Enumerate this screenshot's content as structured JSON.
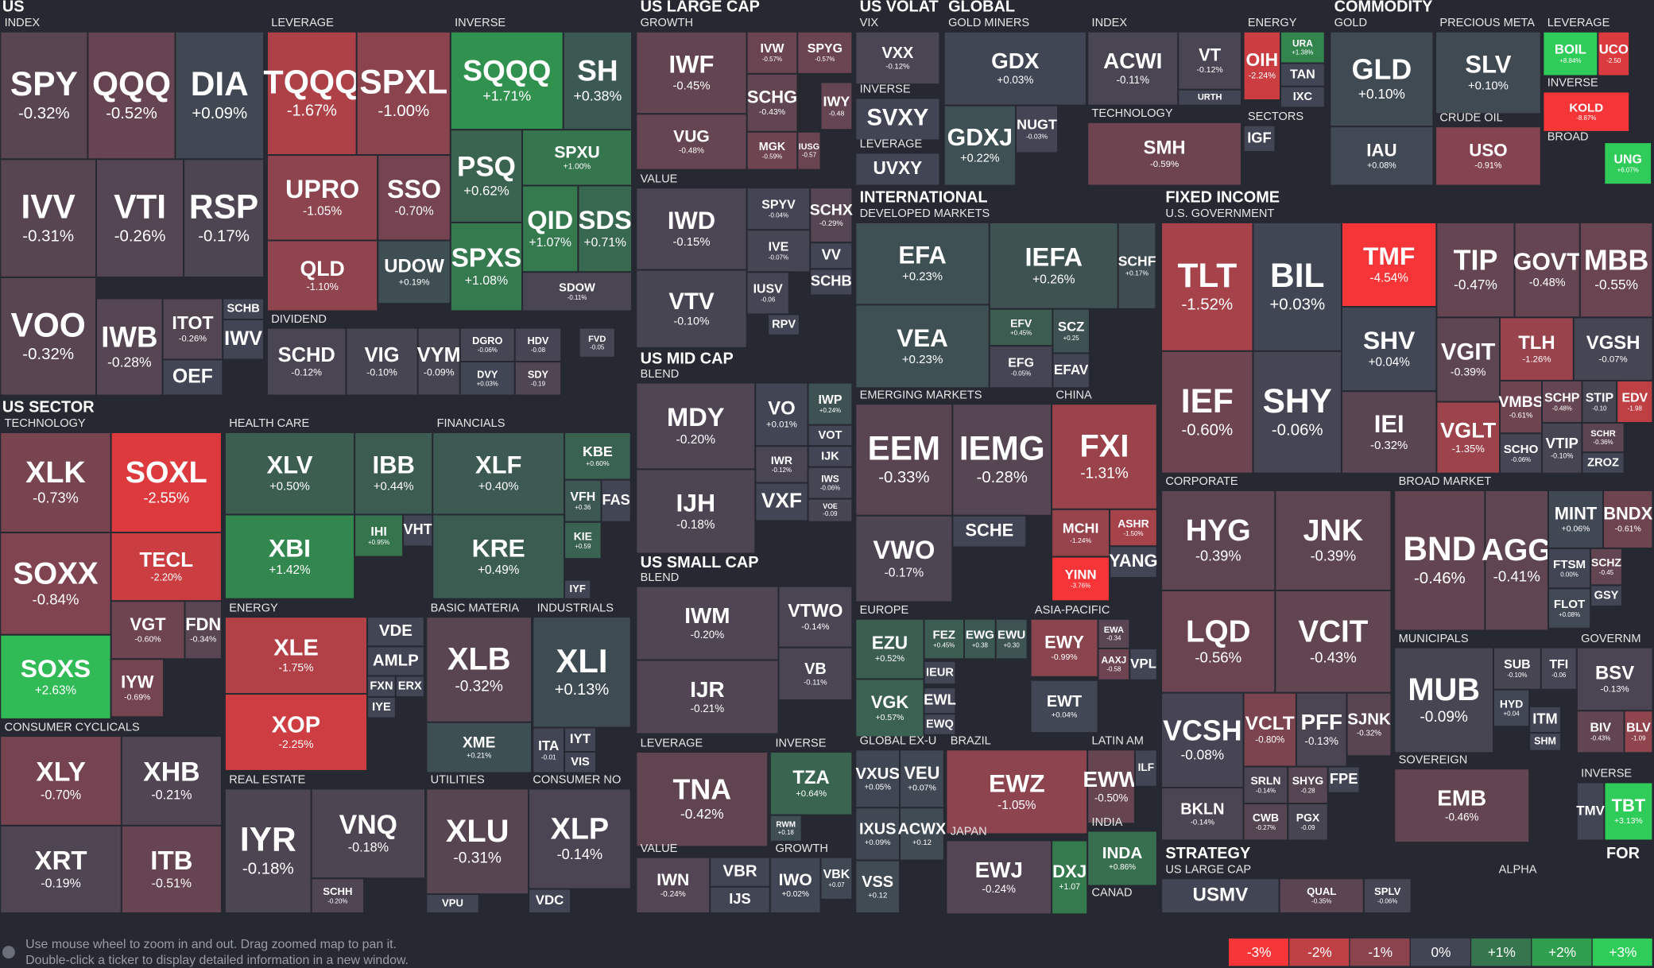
{
  "headers": [
    "US",
    "INDEX",
    "LEVERAGE",
    "INVERSE",
    "DIVIDEND",
    "US LARGE CAP",
    "GROWTH",
    "VALUE",
    "US MID CAP",
    "BLEND",
    "US SMALL CAP",
    "BLEND",
    "LEVERAGE",
    "INVERSE",
    "VALUE",
    "GROWTH",
    "US VOLAT",
    "VIX",
    "INVERSE",
    "LEVERAGE",
    "GLOBAL",
    "GOLD MINERS",
    "INDEX",
    "TECHNOLOGY",
    "ENERGY",
    "SECTORS",
    "COMMODITY",
    "GOLD",
    "PRECIOUS META",
    "CRUDE OIL",
    "LEVERAGE",
    "INVERSE",
    "BROAD",
    "INTERNATIONAL",
    "DEVELOPED MARKETS",
    "EMERGING MARKETS",
    "CHINA",
    "EUROPE",
    "ASIA-PACIFIC",
    "GLOBAL EX-U",
    "BRAZIL",
    "LATIN AM",
    "INDIA",
    "JAPAN",
    "CANAD",
    "FIXED INCOME",
    "U.S. GOVERNMENT",
    "CORPORATE",
    "BROAD MARKET",
    "MUNICIPALS",
    "GOVERNM",
    "SOVEREIGN",
    "INVERSE",
    "STRATEGY",
    "US LARGE CAP",
    "ALPHA",
    "FOR",
    "US SECTOR",
    "TECHNOLOGY",
    "HEALTH CARE",
    "FINANCIALS",
    "ENERGY",
    "BASIC MATERIA",
    "INDUSTRIALS",
    "CONSUMER CYCLICALS",
    "REAL ESTATE",
    "UTILITIES",
    "CONSUMER NO"
  ],
  "tiles": [
    {
      "ticker": "SPY",
      "change": "-0.32%"
    },
    {
      "ticker": "QQQ",
      "change": "-0.52%"
    },
    {
      "ticker": "DIA",
      "change": "+0.09%"
    },
    {
      "ticker": "IVV",
      "change": "-0.31%"
    },
    {
      "ticker": "VTI",
      "change": "-0.26%"
    },
    {
      "ticker": "RSP",
      "change": "-0.17%"
    },
    {
      "ticker": "VOO",
      "change": "-0.32%"
    },
    {
      "ticker": "IWB",
      "change": "-0.28%"
    },
    {
      "ticker": "ITOT",
      "change": "-0.26%"
    },
    {
      "ticker": "SCHB"
    },
    {
      "ticker": "IWV"
    },
    {
      "ticker": "OEF"
    },
    {
      "ticker": "TQQQ",
      "change": "-1.67%"
    },
    {
      "ticker": "SPXL",
      "change": "-1.00%"
    },
    {
      "ticker": "UPRO",
      "change": "-1.05%"
    },
    {
      "ticker": "SSO",
      "change": "-0.70%"
    },
    {
      "ticker": "QLD",
      "change": "-1.10%"
    },
    {
      "ticker": "UDOW",
      "change": "+0.19%"
    },
    {
      "ticker": "SQQQ",
      "change": "+1.71%"
    },
    {
      "ticker": "SH",
      "change": "+0.38%"
    },
    {
      "ticker": "PSQ",
      "change": "+0.62%"
    },
    {
      "ticker": "SPXU",
      "change": "+1.00%"
    },
    {
      "ticker": "QID",
      "change": "+1.07%"
    },
    {
      "ticker": "SDS",
      "change": "+0.71%"
    },
    {
      "ticker": "SPXS",
      "change": "+1.08%"
    },
    {
      "ticker": "SDOW",
      "change": "-0.11%"
    },
    {
      "ticker": "SCHD",
      "change": "-0.12%"
    },
    {
      "ticker": "VIG",
      "change": "-0.10%"
    },
    {
      "ticker": "VYM",
      "change": "-0.09%"
    },
    {
      "ticker": "DGRO",
      "change": "-0.06%"
    },
    {
      "ticker": "DVY",
      "change": "+0.03%"
    },
    {
      "ticker": "HDV",
      "change": "-0.08"
    },
    {
      "ticker": "SDY",
      "change": "-0.19"
    },
    {
      "ticker": "FVD",
      "change": "-0.05"
    },
    {
      "ticker": "IWF",
      "change": "-0.45%"
    },
    {
      "ticker": "IVW",
      "change": "-0.57%"
    },
    {
      "ticker": "SPYG",
      "change": "-0.57%"
    },
    {
      "ticker": "SCHG",
      "change": "-0.43%"
    },
    {
      "ticker": "IWY",
      "change": "-0.48"
    },
    {
      "ticker": "VUG",
      "change": "-0.48%"
    },
    {
      "ticker": "MGK",
      "change": "-0.59%"
    },
    {
      "ticker": "IUSG",
      "change": "-0.57"
    },
    {
      "ticker": "IWD",
      "change": "-0.15%"
    },
    {
      "ticker": "SPYV",
      "change": "-0.04%"
    },
    {
      "ticker": "SCHX",
      "change": "-0.29%"
    },
    {
      "ticker": "IVE",
      "change": "-0.07%"
    },
    {
      "ticker": "VV"
    },
    {
      "ticker": "SCHB"
    },
    {
      "ticker": "VTV",
      "change": "-0.10%"
    },
    {
      "ticker": "IUSV",
      "change": "-0.06"
    },
    {
      "ticker": "RPV"
    },
    {
      "ticker": "MDY",
      "change": "-0.20%"
    },
    {
      "ticker": "VO",
      "change": "+0.01%"
    },
    {
      "ticker": "IWP",
      "change": "+0.24%"
    },
    {
      "ticker": "VOT"
    },
    {
      "ticker": "IJK"
    },
    {
      "ticker": "IWR",
      "change": "-0.12%"
    },
    {
      "ticker": "IWS",
      "change": "-0.06%"
    },
    {
      "ticker": "VXF"
    },
    {
      "ticker": "VOE",
      "change": "-0.09"
    },
    {
      "ticker": "IJH",
      "change": "-0.18%"
    },
    {
      "ticker": "IWM",
      "change": "-0.20%"
    },
    {
      "ticker": "VTWO",
      "change": "-0.14%"
    },
    {
      "ticker": "VB",
      "change": "-0.11%"
    },
    {
      "ticker": "IJR",
      "change": "-0.21%"
    },
    {
      "ticker": "TNA",
      "change": "-0.42%"
    },
    {
      "ticker": "TZA",
      "change": "+0.64%"
    },
    {
      "ticker": "RWM",
      "change": "+0.18"
    },
    {
      "ticker": "IWN",
      "change": "-0.24%"
    },
    {
      "ticker": "VBR"
    },
    {
      "ticker": "IJS"
    },
    {
      "ticker": "IWO",
      "change": "+0.02%"
    },
    {
      "ticker": "VBK",
      "change": "+0.07"
    },
    {
      "ticker": "VXX",
      "change": "-0.12%"
    },
    {
      "ticker": "SVXY"
    },
    {
      "ticker": "UVXY"
    },
    {
      "ticker": "GDX",
      "change": "+0.03%"
    },
    {
      "ticker": "GDXJ",
      "change": "+0.22%"
    },
    {
      "ticker": "NUGT",
      "change": "-0.03%"
    },
    {
      "ticker": "ACWI",
      "change": "-0.11%"
    },
    {
      "ticker": "VT",
      "change": "-0.12%"
    },
    {
      "ticker": "URTH"
    },
    {
      "ticker": "SMH",
      "change": "-0.59%"
    },
    {
      "ticker": "OIH",
      "change": "-2.24%"
    },
    {
      "ticker": "URA",
      "change": "+1.38%"
    },
    {
      "ticker": "TAN"
    },
    {
      "ticker": "IXC"
    },
    {
      "ticker": "IGF"
    },
    {
      "ticker": "GLD",
      "change": "+0.10%"
    },
    {
      "ticker": "IAU",
      "change": "+0.08%"
    },
    {
      "ticker": "SLV",
      "change": "+0.10%"
    },
    {
      "ticker": "USO",
      "change": "-0.91%"
    },
    {
      "ticker": "BOIL",
      "change": "+8.84%"
    },
    {
      "ticker": "UCO",
      "change": "-2.50"
    },
    {
      "ticker": "KOLD",
      "change": "-8.87%"
    },
    {
      "ticker": "UNG",
      "change": "+6.07%"
    },
    {
      "ticker": "EFA",
      "change": "+0.23%"
    },
    {
      "ticker": "IEFA",
      "change": "+0.26%"
    },
    {
      "ticker": "SCHF",
      "change": "+0.17%"
    },
    {
      "ticker": "VEA",
      "change": "+0.23%"
    },
    {
      "ticker": "EFV",
      "change": "+0.45%"
    },
    {
      "ticker": "SCZ",
      "change": "+0.25"
    },
    {
      "ticker": "EFG",
      "change": "-0.05%"
    },
    {
      "ticker": "EFAV"
    },
    {
      "ticker": "EEM",
      "change": "-0.33%"
    },
    {
      "ticker": "IEMG",
      "change": "-0.28%"
    },
    {
      "ticker": "VWO",
      "change": "-0.17%"
    },
    {
      "ticker": "SCHE"
    },
    {
      "ticker": "FXI",
      "change": "-1.31%"
    },
    {
      "ticker": "MCHI",
      "change": "-1.24%"
    },
    {
      "ticker": "ASHR",
      "change": "-1.50%"
    },
    {
      "ticker": "YANG"
    },
    {
      "ticker": "YINN",
      "change": "-3.76%"
    },
    {
      "ticker": "EZU",
      "change": "+0.52%"
    },
    {
      "ticker": "FEZ",
      "change": "+0.45%"
    },
    {
      "ticker": "EWG",
      "change": "+0.38"
    },
    {
      "ticker": "EWU",
      "change": "+0.30"
    },
    {
      "ticker": "VGK",
      "change": "+0.57%"
    },
    {
      "ticker": "IEUR"
    },
    {
      "ticker": "EWL"
    },
    {
      "ticker": "EWQ"
    },
    {
      "ticker": "EWY",
      "change": "-0.99%"
    },
    {
      "ticker": "EWA",
      "change": "-0.34"
    },
    {
      "ticker": "AAXJ",
      "change": "-0.58"
    },
    {
      "ticker": "VPL"
    },
    {
      "ticker": "EWT",
      "change": "+0.04%"
    },
    {
      "ticker": "VXUS",
      "change": "+0.05%"
    },
    {
      "ticker": "VEU",
      "change": "+0.07%"
    },
    {
      "ticker": "IXUS",
      "change": "+0.09%"
    },
    {
      "ticker": "ACWX",
      "change": "+0.12"
    },
    {
      "ticker": "VSS",
      "change": "+0.12"
    },
    {
      "ticker": "EWZ",
      "change": "-1.05%"
    },
    {
      "ticker": "EWJ",
      "change": "-0.24%"
    },
    {
      "ticker": "DXJ",
      "change": "+1.07"
    },
    {
      "ticker": "EWW",
      "change": "-0.50%"
    },
    {
      "ticker": "ILF"
    },
    {
      "ticker": "INDA",
      "change": "+0.86%"
    },
    {
      "ticker": "TLT",
      "change": "-1.52%"
    },
    {
      "ticker": "BIL",
      "change": "+0.03%"
    },
    {
      "ticker": "TMF",
      "change": "-4.54%"
    },
    {
      "ticker": "TIP",
      "change": "-0.47%"
    },
    {
      "ticker": "GOVT",
      "change": "-0.48%"
    },
    {
      "ticker": "MBB",
      "change": "-0.55%"
    },
    {
      "ticker": "IEF",
      "change": "-0.60%"
    },
    {
      "ticker": "SHY",
      "change": "-0.06%"
    },
    {
      "ticker": "SHV",
      "change": "+0.04%"
    },
    {
      "ticker": "IEI",
      "change": "-0.32%"
    },
    {
      "ticker": "VGIT",
      "change": "-0.39%"
    },
    {
      "ticker": "TLH",
      "change": "-1.26%"
    },
    {
      "ticker": "VGSH",
      "change": "-0.07%"
    },
    {
      "ticker": "VGLT",
      "change": "-1.35%"
    },
    {
      "ticker": "VMBS",
      "change": "-0.61%"
    },
    {
      "ticker": "SCHP",
      "change": "-0.48%"
    },
    {
      "ticker": "STIP",
      "change": "-0.10"
    },
    {
      "ticker": "EDV",
      "change": "-1.98"
    },
    {
      "ticker": "SCHO",
      "change": "-0.06%"
    },
    {
      "ticker": "VTIP",
      "change": "-0.10%"
    },
    {
      "ticker": "SCHR",
      "change": "-0.36%"
    },
    {
      "ticker": "ZROZ"
    },
    {
      "ticker": "HYG",
      "change": "-0.39%"
    },
    {
      "ticker": "JNK",
      "change": "-0.39%"
    },
    {
      "ticker": "LQD",
      "change": "-0.56%"
    },
    {
      "ticker": "VCIT",
      "change": "-0.43%"
    },
    {
      "ticker": "VCSH",
      "change": "-0.08%"
    },
    {
      "ticker": "BKLN",
      "change": "-0.14%"
    },
    {
      "ticker": "VCLT",
      "change": "-0.80%"
    },
    {
      "ticker": "PFF",
      "change": "-0.13%"
    },
    {
      "ticker": "SJNK",
      "change": "-0.32%"
    },
    {
      "ticker": "SRLN",
      "change": "-0.14%"
    },
    {
      "ticker": "SHYG",
      "change": "-0.28"
    },
    {
      "ticker": "FPE"
    },
    {
      "ticker": "CWB",
      "change": "-0.27%"
    },
    {
      "ticker": "PGX",
      "change": "-0.09"
    },
    {
      "ticker": "BND",
      "change": "-0.46%"
    },
    {
      "ticker": "AGG",
      "change": "-0.41%"
    },
    {
      "ticker": "MINT",
      "change": "+0.06%"
    },
    {
      "ticker": "BNDX",
      "change": "-0.61%"
    },
    {
      "ticker": "FTSM",
      "change": "0.00%"
    },
    {
      "ticker": "SCHZ",
      "change": "-0.45"
    },
    {
      "ticker": "GSY"
    },
    {
      "ticker": "FLOT",
      "change": "+0.08%"
    },
    {
      "ticker": "MUB",
      "change": "-0.09%"
    },
    {
      "ticker": "SUB",
      "change": "-0.10%"
    },
    {
      "ticker": "TFI",
      "change": "-0.06"
    },
    {
      "ticker": "HYD",
      "change": "+0.04"
    },
    {
      "ticker": "ITM"
    },
    {
      "ticker": "SHM"
    },
    {
      "ticker": "BSV",
      "change": "-0.13%"
    },
    {
      "ticker": "BIV",
      "change": "-0.43%"
    },
    {
      "ticker": "BLV",
      "change": "-1.09"
    },
    {
      "ticker": "EMB",
      "change": "-0.46%"
    },
    {
      "ticker": "TBT",
      "change": "+3.13%"
    },
    {
      "ticker": "TMV"
    },
    {
      "ticker": "USMV"
    },
    {
      "ticker": "QUAL",
      "change": "-0.35%"
    },
    {
      "ticker": "SPLV",
      "change": "-0.06%"
    },
    {
      "ticker": "XLK",
      "change": "-0.73%"
    },
    {
      "ticker": "SOXL",
      "change": "-2.55%"
    },
    {
      "ticker": "SOXX",
      "change": "-0.84%"
    },
    {
      "ticker": "TECL",
      "change": "-2.20%"
    },
    {
      "ticker": "VGT",
      "change": "-0.60%"
    },
    {
      "ticker": "FDN",
      "change": "-0.34%"
    },
    {
      "ticker": "SOXS",
      "change": "+2.63%"
    },
    {
      "ticker": "IYW",
      "change": "-0.69%"
    },
    {
      "ticker": "XLV",
      "change": "+0.50%"
    },
    {
      "ticker": "IBB",
      "change": "+0.44%"
    },
    {
      "ticker": "XBI",
      "change": "+1.42%"
    },
    {
      "ticker": "IHI",
      "change": "+0.95%"
    },
    {
      "ticker": "VHT"
    },
    {
      "ticker": "XLF",
      "change": "+0.40%"
    },
    {
      "ticker": "KBE",
      "change": "+0.60%"
    },
    {
      "ticker": "VFH",
      "change": "+0.36"
    },
    {
      "ticker": "FAS"
    },
    {
      "ticker": "KRE",
      "change": "+0.49%"
    },
    {
      "ticker": "KIE",
      "change": "+0.59"
    },
    {
      "ticker": "IYF"
    },
    {
      "ticker": "XLE",
      "change": "-1.75%"
    },
    {
      "ticker": "VDE"
    },
    {
      "ticker": "AMLP"
    },
    {
      "ticker": "FXN"
    },
    {
      "ticker": "ERX"
    },
    {
      "ticker": "IYE"
    },
    {
      "ticker": "XOP",
      "change": "-2.25%"
    },
    {
      "ticker": "XLB",
      "change": "-0.32%"
    },
    {
      "ticker": "XME",
      "change": "+0.21%"
    },
    {
      "ticker": "XLI",
      "change": "+0.13%"
    },
    {
      "ticker": "ITA",
      "change": "-0.01"
    },
    {
      "ticker": "IYT"
    },
    {
      "ticker": "VIS"
    },
    {
      "ticker": "XLY",
      "change": "-0.70%"
    },
    {
      "ticker": "XHB",
      "change": "-0.21%"
    },
    {
      "ticker": "XRT",
      "change": "-0.19%"
    },
    {
      "ticker": "ITB",
      "change": "-0.51%"
    },
    {
      "ticker": "IYR",
      "change": "-0.18%"
    },
    {
      "ticker": "VNQ",
      "change": "-0.18%"
    },
    {
      "ticker": "SCHH",
      "change": "-0.20%"
    },
    {
      "ticker": "XLU",
      "change": "-0.31%"
    },
    {
      "ticker": "VPU"
    },
    {
      "ticker": "XLP",
      "change": "-0.14%"
    },
    {
      "ticker": "VDC"
    }
  ],
  "footer": [
    "Use mouse wheel to zoom in and out. Drag zoomed map to pan it.",
    "Double-click a ticker to display detailed information in a new window."
  ],
  "legend": [
    {
      "label": "-3%",
      "color": "#f63538"
    },
    {
      "label": "-2%",
      "color": "#bf4045"
    },
    {
      "label": "-1%",
      "color": "#8b444e"
    },
    {
      "label": "0%",
      "color": "#414554"
    },
    {
      "label": "+1%",
      "color": "#35764e"
    },
    {
      "label": "+2%",
      "color": "#2f9e4f"
    },
    {
      "label": "+3%",
      "color": "#30cc5a"
    }
  ]
}
